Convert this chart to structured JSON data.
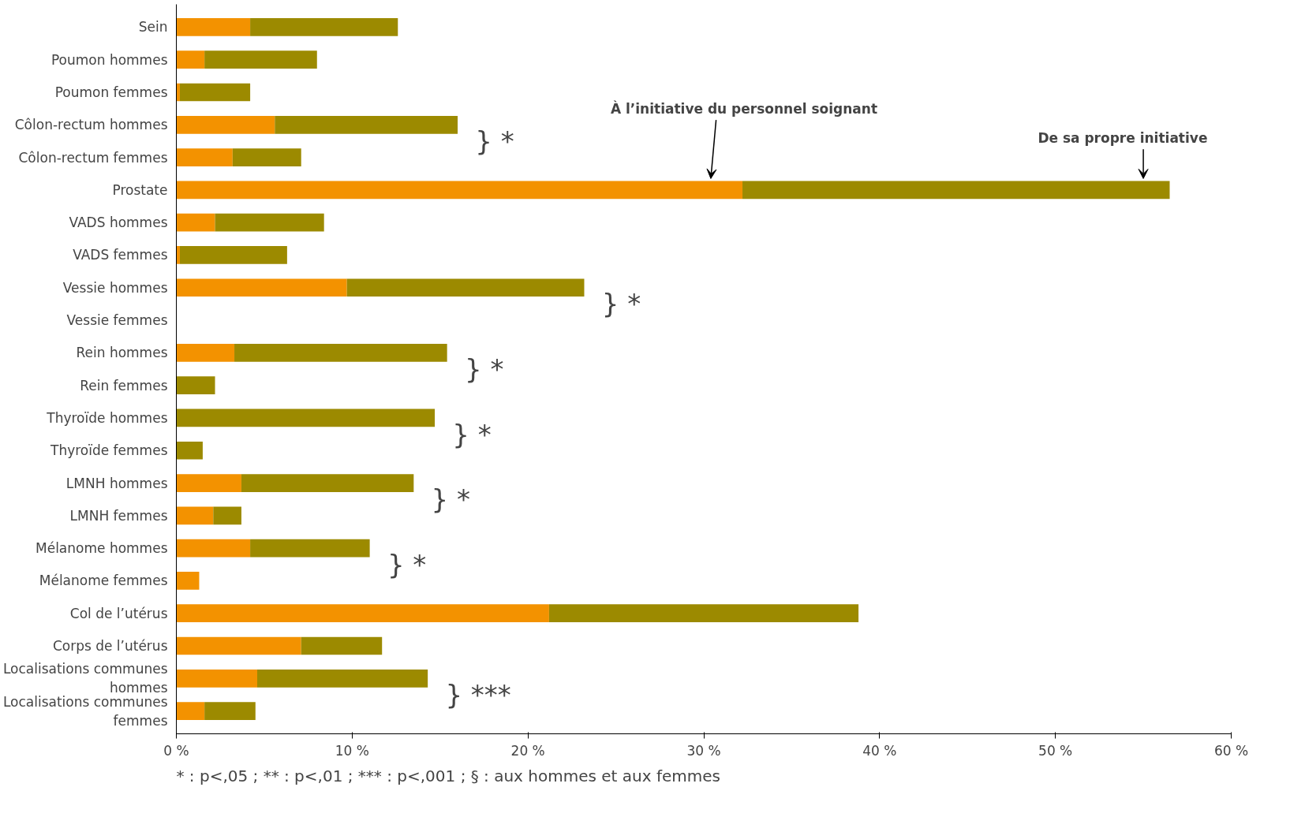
{
  "chart_data": {
    "type": "bar",
    "orientation": "horizontal",
    "stacked": true,
    "categories": [
      "Sein",
      "Poumon hommes",
      "Poumon femmes",
      "Côlon-rectum hommes",
      "Côlon-rectum femmes",
      "Prostate",
      "VADS hommes",
      "VADS femmes",
      "Vessie hommes",
      "Vessie femmes",
      "Rein hommes",
      "Rein femmes",
      "Thyroïde hommes",
      "Thyroïde femmes",
      "LMNH hommes",
      "LMNH femmes",
      "Mélanome hommes",
      "Mélanome femmes",
      "Col de l’utérus",
      "Corps de l’utérus",
      "Localisations communes hommes",
      "Localisations communes femmes"
    ],
    "series": [
      {
        "name": "À l’initiative du personnel soignant",
        "color": "#f39200",
        "values": [
          4.2,
          1.6,
          0.2,
          5.6,
          3.2,
          32.2,
          2.2,
          0.2,
          9.7,
          null,
          3.3,
          0,
          0,
          0,
          3.7,
          2.1,
          4.2,
          1.3,
          21.2,
          7.1,
          4.6,
          1.6
        ]
      },
      {
        "name": "De sa propre initiative",
        "color": "#9c8a00",
        "values": [
          8.4,
          6.4,
          4.0,
          10.4,
          3.9,
          24.3,
          6.2,
          6.1,
          13.5,
          null,
          12.1,
          2.2,
          14.7,
          1.5,
          9.8,
          1.6,
          6.8,
          0,
          17.6,
          4.6,
          9.7,
          2.9
        ]
      }
    ],
    "xlim": [
      0,
      60
    ],
    "xticks": [
      {
        "value": 0,
        "label": "0 %"
      },
      {
        "value": 10,
        "label": "10 %"
      },
      {
        "value": 20,
        "label": "20 %"
      },
      {
        "value": 30,
        "label": "30 %"
      },
      {
        "value": 40,
        "label": "40 %"
      },
      {
        "value": 50,
        "label": "50 %"
      },
      {
        "value": 60,
        "label": "60 %"
      }
    ],
    "grid": false,
    "annotations": [
      "} *",
      "} *",
      "} *",
      "} *",
      "} *",
      "} *",
      "} ***",
      "* : p<,05 ;    ** : p<,01 ;    *** : p<,001 ;    § : aux hommes et aux femmes"
    ]
  }
}
